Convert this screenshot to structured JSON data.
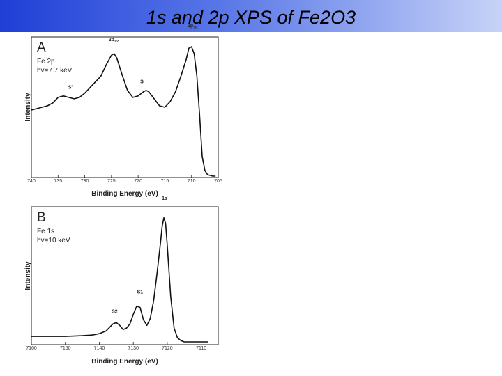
{
  "slide": {
    "title": "1s and 2p XPS of Fe2O3"
  },
  "chart_data": [
    {
      "type": "line",
      "panel": "A",
      "info_lines": [
        "Fe 2p",
        "hv=7.7 keV"
      ],
      "xlabel": "Binding Energy (eV)",
      "ylabel": "Intensity",
      "xlim": [
        740,
        705
      ],
      "x_reversed": true,
      "ylim": [
        0,
        1
      ],
      "x_ticks": [
        740,
        735,
        730,
        725,
        720,
        715,
        710,
        705
      ],
      "series": [
        {
          "x": [
            740,
            739,
            738,
            737,
            736,
            735,
            734,
            733,
            732,
            731,
            730,
            729,
            728,
            727,
            726,
            725,
            724.5,
            724,
            723,
            722,
            721,
            720,
            719,
            718.5,
            718,
            717,
            716,
            715,
            714,
            713,
            712,
            711,
            710.5,
            710,
            709.5,
            709,
            708.5,
            708,
            707.5,
            707,
            706,
            705.5
          ],
          "y": [
            0.48,
            0.49,
            0.5,
            0.51,
            0.53,
            0.57,
            0.58,
            0.57,
            0.56,
            0.57,
            0.6,
            0.64,
            0.68,
            0.72,
            0.8,
            0.87,
            0.88,
            0.85,
            0.73,
            0.62,
            0.57,
            0.58,
            0.61,
            0.62,
            0.61,
            0.56,
            0.51,
            0.5,
            0.54,
            0.61,
            0.72,
            0.84,
            0.92,
            0.93,
            0.88,
            0.72,
            0.45,
            0.15,
            0.05,
            0.02,
            0.01,
            0.01
          ]
        }
      ],
      "annotations": [
        {
          "text": "S'",
          "x": 732.7,
          "y": 0.63
        },
        {
          "text": "2p1/2",
          "x": 724.6,
          "y": 0.97
        },
        {
          "text": "S",
          "x": 719.3,
          "y": 0.67
        },
        {
          "text": "2p3/2",
          "x": 709.8,
          "y": 1.07
        }
      ]
    },
    {
      "type": "line",
      "panel": "B",
      "info_lines": [
        "Fe 1s",
        "hv=10 keV"
      ],
      "xlabel": "Binding Energy (eV)",
      "ylabel": "Intensity",
      "xlim": [
        7160,
        7105
      ],
      "x_reversed": true,
      "ylim": [
        0,
        1
      ],
      "x_ticks": [
        7160,
        7150,
        7140,
        7130,
        7120,
        7110
      ],
      "series": [
        {
          "x": [
            7160,
            7155,
            7150,
            7145,
            7142,
            7140,
            7138,
            7136,
            7135,
            7134,
            7133,
            7132,
            7131,
            7130,
            7129,
            7128,
            7127,
            7126,
            7125,
            7124,
            7123,
            7122,
            7121.5,
            7121,
            7120.5,
            7120,
            7119,
            7118,
            7117,
            7116,
            7115,
            7112,
            7108
          ],
          "y": [
            0.06,
            0.06,
            0.06,
            0.065,
            0.07,
            0.08,
            0.1,
            0.15,
            0.16,
            0.14,
            0.11,
            0.12,
            0.15,
            0.22,
            0.28,
            0.27,
            0.18,
            0.14,
            0.19,
            0.32,
            0.52,
            0.74,
            0.86,
            0.92,
            0.88,
            0.72,
            0.35,
            0.12,
            0.05,
            0.03,
            0.02,
            0.02,
            0.02
          ]
        }
      ],
      "annotations": [
        {
          "text": "S2",
          "x": 7135.5,
          "y": 0.23
        },
        {
          "text": "S1",
          "x": 7128,
          "y": 0.37
        },
        {
          "text": "1s",
          "x": 7120.8,
          "y": 1.05
        }
      ]
    }
  ]
}
